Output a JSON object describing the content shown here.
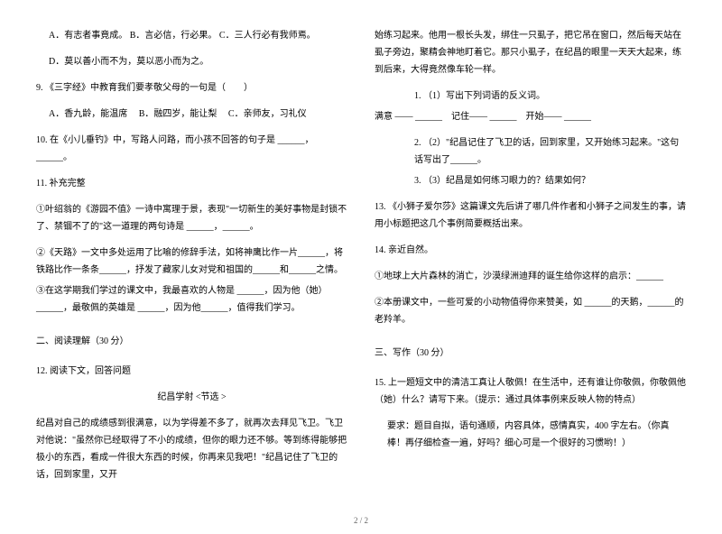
{
  "left": {
    "opt_a": "A．有志者事竟成。",
    "opt_b": "B．言必信，行必果。",
    "opt_c": "C．三人行必有我师焉。",
    "opt_d": "D．莫以善小而不为，莫以恶小而为之。",
    "q9": "9. 《三字经》中教育我们要孝敬父母的一句是（　　）",
    "q9_a": "A．香九龄，能温席",
    "q9_b": "B．融四岁，能让梨",
    "q9_c": "C．亲师友，习礼仪",
    "q10": "10. 在《小儿垂钓》中，写路人问路，而小孩不回答的句子是 ______，______。",
    "q11": "11. 补充完整",
    "q11_1": "①叶绍翁的《游园不值》一诗中寓理于景，表现\"一切新生的美好事物是封锁不了、禁锢不了的\"这一道理的两句诗是 ______，______。",
    "q11_2": "②《天路》一文中多处运用了比喻的修辞手法，如将神鹰比作一片______，将铁路比作一条条______，抒发了藏家儿女对党和祖国的______和______之情。",
    "q11_3": "③在这学期我们学过的课文中，我最喜欢的人物是 ______，因为他（她）______，最敬佩的英雄是 ______，因为他______，值得我们学习。",
    "sec2": "二、阅读理解（30 分）",
    "q12": "12. 阅读下文，回答问题",
    "q12_title": "纪昌学射 <节选 >",
    "q12_body": "纪昌对自己的成绩感到很满意，以为学得差不多了，就再次去拜见飞卫。飞卫对他说：\"虽然你已经取得了不小的成绩，但你的眼力还不够。等到练得能够把极小的东西，看成一件很大东西的时候，你再来见我吧！\"纪昌记住了飞卫的话，回到家里，又开"
  },
  "right": {
    "cont": "始练习起来。他用一根长头发，绑住一只虱子，把它吊在窗口，然后每天站在虱子旁边，聚精会神地盯着它。那只小虱子，在纪昌的眼里一天天大起来，练到后来，大得竟然像车轮一样。",
    "q12_1": "1. （1）写出下列词语的反义词。",
    "q12_1_words": "满意 —— ______　记住—— ______　开始—— ______",
    "q12_2": "2. （2）\"纪昌记住了飞卫的话，回到家里，又开始练习起来。\"这句话写出了______。",
    "q12_3": "3. （3）纪昌是如何练习眼力的？结果如何？",
    "q13": "13. 《小狮子爱尔莎》这篇课文先后讲了哪几件作者和小狮子之间发生的事，请用小标题把这几个事例简要概括出来。",
    "q14": "14. 亲近自然。",
    "q14_1": "①地球上大片森林的消亡，沙漠绿洲迪拜的诞生给你这样的启示：______",
    "q14_2": "②本册课文中，一些可爱的小动物值得你来赞美，如 ______的天鹅，______的老羚羊。",
    "sec3": "三、写作（30 分）",
    "q15": "15. 上一题短文中的清洁工真让人敬佩！在生活中，还有谁让你敬佩，你敬佩他（她）什么？请写下来。（提示：通过具体事例来反映人物的特点）",
    "q15_req": "要求：题目自拟，语句通顺，内容具体，感情真实，400 字左右。（你真棒！再仔细检查一遍，好吗？细心可是一个很好的习惯哟！）"
  },
  "pagenum": "2 / 2"
}
